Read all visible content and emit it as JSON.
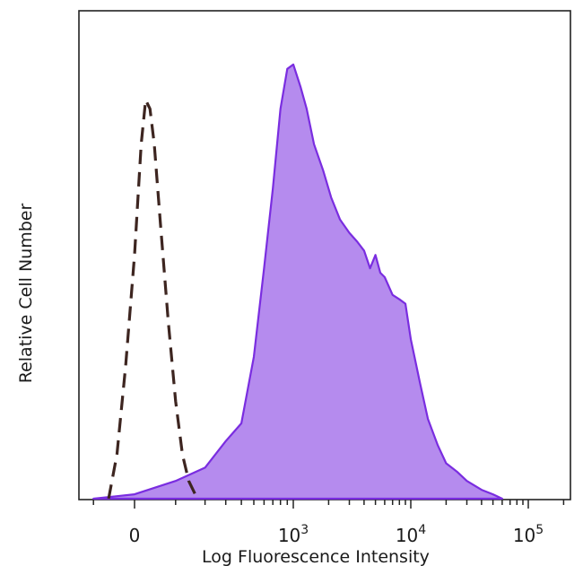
{
  "chart_data": {
    "type": "area",
    "title": "",
    "xlabel": "Log Fluorescence Intensity",
    "ylabel": "Relative Cell Number",
    "x_scale": "biexponential",
    "x_ticks": [
      {
        "value": 0,
        "base": "0",
        "exp": ""
      },
      {
        "value": 1000,
        "base": "10",
        "exp": "3"
      },
      {
        "value": 10000,
        "base": "10",
        "exp": "4"
      },
      {
        "value": 100000,
        "base": "10",
        "exp": "5"
      }
    ],
    "ylim": [
      0,
      100
    ],
    "grid": false,
    "legend": "none",
    "series": [
      {
        "style": "filled",
        "fill": "#b58bee",
        "stroke": "#7a2de0",
        "points": [
          [
            -100,
            0
          ],
          [
            0,
            1
          ],
          [
            100,
            4
          ],
          [
            200,
            7
          ],
          [
            300,
            13
          ],
          [
            400,
            17
          ],
          [
            500,
            32
          ],
          [
            600,
            52
          ],
          [
            700,
            70
          ],
          [
            800,
            88
          ],
          [
            900,
            97
          ],
          [
            1000,
            98
          ],
          [
            1150,
            93
          ],
          [
            1300,
            88
          ],
          [
            1500,
            80
          ],
          [
            1800,
            74
          ],
          [
            2100,
            68
          ],
          [
            2500,
            63
          ],
          [
            3000,
            60
          ],
          [
            3500,
            58
          ],
          [
            4000,
            56
          ],
          [
            4500,
            52
          ],
          [
            5000,
            55
          ],
          [
            5500,
            51
          ],
          [
            6000,
            50
          ],
          [
            7000,
            46
          ],
          [
            8000,
            45
          ],
          [
            9000,
            44
          ],
          [
            10000,
            36
          ],
          [
            12000,
            26
          ],
          [
            14000,
            18
          ],
          [
            17000,
            12
          ],
          [
            20000,
            8
          ],
          [
            25000,
            6
          ],
          [
            30000,
            4
          ],
          [
            40000,
            2
          ],
          [
            50000,
            1
          ],
          [
            60000,
            0
          ]
        ]
      },
      {
        "style": "dashed",
        "stroke": "#3d2520",
        "points": [
          [
            -60,
            0
          ],
          [
            -40,
            10
          ],
          [
            -20,
            30
          ],
          [
            0,
            55
          ],
          [
            15,
            80
          ],
          [
            25,
            90
          ],
          [
            35,
            88
          ],
          [
            45,
            80
          ],
          [
            60,
            62
          ],
          [
            80,
            40
          ],
          [
            100,
            22
          ],
          [
            120,
            10
          ],
          [
            140,
            4
          ],
          [
            170,
            0
          ]
        ]
      }
    ]
  }
}
